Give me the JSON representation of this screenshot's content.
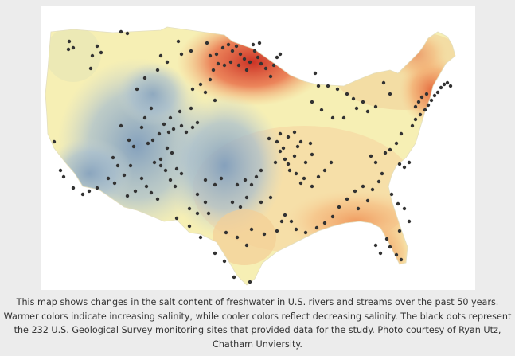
{
  "caption": {
    "lines": [
      "This map shows changes in the salt content of freshwater in U.S. rivers and streams over the past 50 years.",
      "Warmer colors indicate increasing salinity, while cooler colors reflect decreasing salinity. The black dots represent",
      "the 232 U.S. Geological Survey monitoring sites that provided data for the study. Photo courtesy of Ryan Utz,",
      "Chatham Unviersity."
    ]
  },
  "map": {
    "colors": {
      "frame_background": "#ffffff",
      "increasing_strong": "#d7402a",
      "increasing": "#f08a55",
      "neutral": "#f6efb4",
      "decreasing": "#a9bfd4",
      "decreasing_strong": "#7e9cbc",
      "site_dot": "#333333"
    }
  }
}
